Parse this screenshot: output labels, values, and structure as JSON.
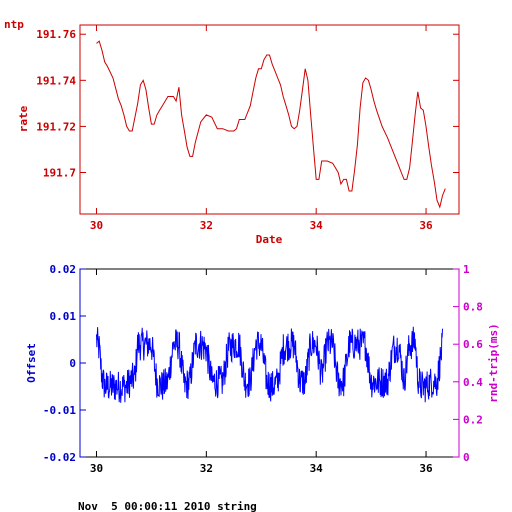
{
  "colors": {
    "top_axis": "#cc0000",
    "top_series": "#cc0000",
    "offset_axis": "#0000cc",
    "offset_series": "#0000ff",
    "rtt_axis": "#cc00cc",
    "bottom_frame": "#000000"
  },
  "corner_label": "ntp",
  "footer": "Nov  5 00:00:11 2010 string",
  "chart_data": [
    {
      "type": "line",
      "title": "",
      "xlabel": "Date",
      "ylabel": "rate",
      "xlim": [
        29.7,
        36.6
      ],
      "ylim": [
        191.682,
        191.764
      ],
      "x_ticks": [
        30,
        32,
        34,
        36
      ],
      "x_tick_labels": [
        "30",
        "32",
        "34",
        "36"
      ],
      "y_ticks": [
        191.7,
        191.72,
        191.74,
        191.76
      ],
      "y_tick_labels": [
        "191.7",
        "191.72",
        "191.74",
        "191.76"
      ],
      "grid": false,
      "series": [
        {
          "x": [
            30.0,
            30.05,
            30.1,
            30.15,
            30.2,
            30.3,
            30.4,
            30.45,
            30.5,
            30.55,
            30.6,
            30.65,
            30.75,
            30.8,
            30.85,
            30.9,
            30.95,
            31.0,
            31.05,
            31.1,
            31.15,
            31.2,
            31.3,
            31.4,
            31.45,
            31.5,
            31.55,
            31.6,
            31.65,
            31.7,
            31.75,
            31.8,
            31.9,
            32.0,
            32.1,
            32.2,
            32.3,
            32.4,
            32.5,
            32.55,
            32.6,
            32.7,
            32.8,
            32.85,
            32.9,
            32.95,
            33.0,
            33.05,
            33.1,
            33.15,
            33.2,
            33.25,
            33.3,
            33.35,
            33.4,
            33.45,
            33.5,
            33.55,
            33.6,
            33.65,
            33.7,
            33.75,
            33.8,
            33.85,
            33.9,
            33.95,
            34.0,
            34.05,
            34.1,
            34.15,
            34.2,
            34.3,
            34.4,
            34.45,
            34.5,
            34.55,
            34.6,
            34.65,
            34.7,
            34.75,
            34.8,
            34.85,
            34.9,
            34.95,
            35.0,
            35.05,
            35.1,
            35.2,
            35.3,
            35.4,
            35.5,
            35.55,
            35.6,
            35.65,
            35.7,
            35.75,
            35.8,
            35.85,
            35.9,
            35.95,
            36.0,
            36.05,
            36.1,
            36.15,
            36.2,
            36.25,
            36.3,
            36.35
          ],
          "y": [
            191.756,
            191.757,
            191.753,
            191.748,
            191.746,
            191.741,
            191.732,
            191.729,
            191.725,
            191.72,
            191.718,
            191.718,
            191.73,
            191.738,
            191.74,
            191.736,
            191.728,
            191.721,
            191.721,
            191.725,
            191.727,
            191.729,
            191.733,
            191.733,
            191.731,
            191.737,
            191.725,
            191.718,
            191.711,
            191.707,
            191.707,
            191.713,
            191.722,
            191.725,
            191.724,
            191.719,
            191.719,
            191.718,
            191.718,
            191.719,
            191.723,
            191.723,
            191.729,
            191.735,
            191.741,
            191.745,
            191.745,
            191.749,
            191.751,
            191.751,
            191.747,
            191.744,
            191.741,
            191.738,
            191.733,
            191.729,
            191.725,
            191.72,
            191.719,
            191.72,
            191.727,
            191.736,
            191.745,
            191.74,
            191.725,
            191.711,
            191.697,
            191.697,
            191.705,
            191.705,
            191.705,
            191.704,
            191.7,
            191.695,
            191.697,
            191.697,
            191.692,
            191.692,
            191.701,
            191.712,
            191.728,
            191.739,
            191.741,
            191.74,
            191.736,
            191.731,
            191.727,
            191.72,
            191.715,
            191.709,
            191.703,
            191.7,
            191.697,
            191.697,
            191.702,
            191.713,
            191.725,
            191.735,
            191.728,
            191.727,
            191.72,
            191.711,
            191.703,
            191.696,
            191.688,
            191.685,
            191.69,
            191.693
          ]
        }
      ]
    },
    {
      "type": "line",
      "title": "",
      "xlabel": "",
      "ylabel": "Offset",
      "y2label": "rnd-trip(ms)",
      "xlim": [
        29.7,
        36.6
      ],
      "ylim": [
        -0.02,
        0.02
      ],
      "y2lim": [
        0,
        1
      ],
      "x_ticks": [
        30,
        32,
        34,
        36
      ],
      "x_tick_labels": [
        "30",
        "32",
        "34",
        "36"
      ],
      "y_ticks": [
        -0.02,
        -0.01,
        0,
        0.01,
        0.02
      ],
      "y_tick_labels": [
        "-0.02",
        "-0.01",
        "0",
        "0.01",
        "0.02"
      ],
      "y2_ticks": [
        0,
        0.2,
        0.4,
        0.6,
        0.8,
        1
      ],
      "y2_tick_labels": [
        "0",
        "0.2",
        "0.4",
        "0.6",
        "0.8",
        "1"
      ],
      "grid": false,
      "series": [
        {
          "x": [
            30.0,
            30.05,
            30.1,
            30.15,
            30.3,
            30.45,
            30.55,
            30.6,
            30.7,
            30.75,
            30.8,
            30.9,
            31.0,
            31.1,
            31.2,
            31.3,
            31.4,
            31.5,
            31.6,
            31.7,
            31.8,
            31.85,
            31.9,
            32.0,
            32.1,
            32.2,
            32.3,
            32.4,
            32.5,
            32.6,
            32.7,
            32.8,
            32.9,
            33.0,
            33.1,
            33.2,
            33.3,
            33.4,
            33.5,
            33.6,
            33.7,
            33.8,
            33.9,
            34.0,
            34.1,
            34.2,
            34.3,
            34.4,
            34.5,
            34.6,
            34.7,
            34.8,
            34.9,
            35.0,
            35.1,
            35.2,
            35.3,
            35.4,
            35.5,
            35.6,
            35.7,
            35.75,
            35.8,
            35.85,
            35.9,
            36.0,
            36.1,
            36.2,
            36.3
          ],
          "y": [
            0.005,
            0.003,
            -0.003,
            -0.005,
            -0.005,
            -0.005,
            -0.005,
            -0.004,
            -0.003,
            0.004,
            0.004,
            0.004,
            0.004,
            -0.004,
            -0.005,
            -0.004,
            0.004,
            0.004,
            -0.005,
            -0.004,
            0.004,
            0.004,
            0.004,
            0.003,
            -0.004,
            -0.004,
            -0.004,
            0.003,
            0.004,
            0.004,
            -0.004,
            -0.004,
            0.004,
            0.004,
            -0.004,
            -0.005,
            -0.004,
            0.003,
            0.004,
            0.004,
            -0.004,
            -0.004,
            0.004,
            0.004,
            -0.003,
            0.004,
            0.004,
            -0.004,
            -0.004,
            0.004,
            0.004,
            0.004,
            0.004,
            -0.004,
            -0.004,
            -0.004,
            -0.004,
            0.003,
            0.004,
            -0.004,
            0.004,
            0.004,
            0.005,
            -0.003,
            -0.005,
            -0.005,
            -0.004,
            -0.004,
            0.004
          ]
        }
      ]
    }
  ]
}
